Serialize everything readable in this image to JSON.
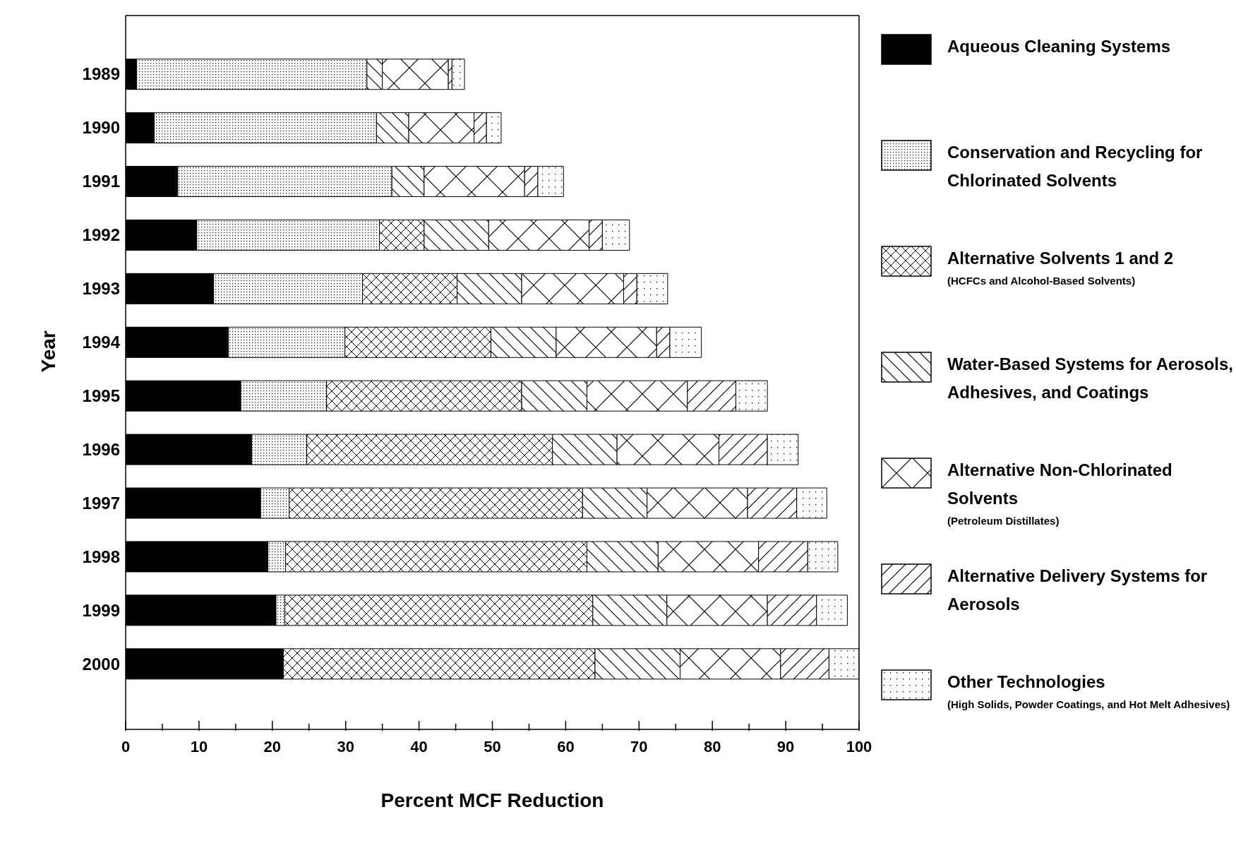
{
  "chart_data": {
    "type": "bar",
    "orientation": "horizontal",
    "stacked": true,
    "xlabel": "Percent MCF Reduction",
    "ylabel": "Year",
    "categories": [
      "1989",
      "1990",
      "1991",
      "1992",
      "1993",
      "1994",
      "1995",
      "1996",
      "1997",
      "1998",
      "1999",
      "2000"
    ],
    "series": [
      {
        "name": "Aqueous Cleaning Systems",
        "color": "#000000",
        "values": [
          1.5,
          3.9,
          7.1,
          9.7,
          12.0,
          14.0,
          15.7,
          17.2,
          18.4,
          19.4,
          20.5,
          21.5
        ]
      },
      {
        "name": "Conservation and Recycling for Chlorinated Solvents",
        "color": "#000000",
        "values": [
          31.4,
          30.3,
          29.2,
          24.9,
          20.3,
          15.9,
          11.7,
          7.5,
          3.9,
          2.4,
          1.2,
          null
        ]
      },
      {
        "name": "Alternative Solvents 1 and 2 (HCFCs and Alcohol-Based Solvents)",
        "color": "#000000",
        "values": [
          null,
          null,
          null,
          6.1,
          12.9,
          19.9,
          26.6,
          33.5,
          40.0,
          41.1,
          42.0,
          42.5
        ]
      },
      {
        "name": "Water-Based Systems for Aerosols, Adhesives, and Coatings",
        "color": "#000000",
        "values": [
          2.1,
          4.4,
          4.4,
          8.8,
          8.8,
          8.9,
          8.9,
          8.8,
          8.8,
          9.7,
          10.1,
          11.6
        ]
      },
      {
        "name": "Alternative Non-Chlorinated Solvents (Petroleum Distillates)",
        "color": "#000000",
        "values": [
          9.0,
          8.9,
          13.7,
          13.7,
          13.9,
          13.7,
          13.7,
          13.9,
          13.7,
          13.7,
          13.7,
          13.7
        ]
      },
      {
        "name": "Alternative Delivery Systems for Aerosols",
        "color": "#000000",
        "values": [
          0.5,
          1.7,
          1.8,
          1.8,
          1.8,
          1.8,
          6.6,
          6.6,
          6.7,
          6.7,
          6.7,
          6.6
        ]
      },
      {
        "name": "Other Technologies (High Solids, Powder Coatings, and Hot Melt Adhesives)",
        "color": "#000000",
        "values": [
          1.7,
          2.0,
          3.5,
          3.7,
          4.2,
          4.3,
          4.3,
          4.2,
          4.1,
          4.1,
          4.2,
          4.1
        ]
      }
    ],
    "xlim": [
      0,
      100
    ],
    "xticks": [
      0,
      {
        "value": 5,
        "label": null
      },
      10,
      {
        "value": 15,
        "label": null
      },
      20,
      {
        "value": 25,
        "label": null
      },
      30,
      {
        "value": 35,
        "label": null
      },
      40,
      {
        "value": 45,
        "label": null
      },
      50,
      {
        "value": 55,
        "label": null
      },
      60,
      {
        "value": 65,
        "label": null
      },
      70,
      {
        "value": 75,
        "label": null
      },
      80,
      {
        "value": 85,
        "label": null
      },
      90,
      {
        "value": 95,
        "label": null
      },
      100
    ],
    "legend": "right"
  }
}
